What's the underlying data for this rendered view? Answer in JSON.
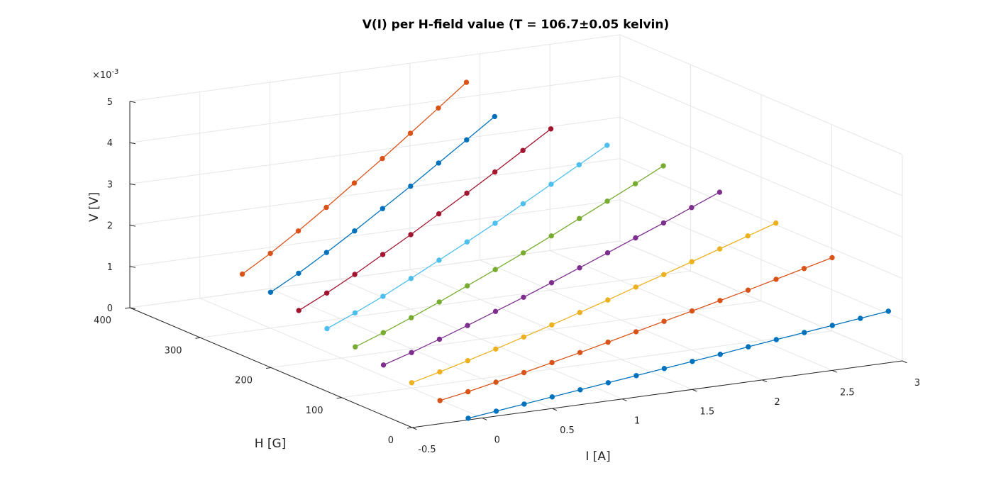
{
  "chart_data": {
    "type": "line",
    "projection": "3d",
    "title": "V(I) per H-field value (T = 106.7±0.05 kelvin)",
    "xlabel": "I [A]",
    "ylabel": "H [G]",
    "zlabel": "V [V]",
    "z_exponent_label": "×10",
    "z_exponent_value": "-3",
    "xlim": [
      -0.5,
      3
    ],
    "ylim": [
      0,
      400
    ],
    "zlim": [
      0,
      0.005
    ],
    "xticks": [
      "-0.5",
      "0",
      "0.5",
      "1",
      "1.5",
      "2",
      "2.5",
      "3"
    ],
    "yticks": [
      "0",
      "100",
      "200",
      "300",
      "400"
    ],
    "zticks": [
      "0",
      "1",
      "2",
      "3",
      "4",
      "5"
    ],
    "grid": true,
    "x": [
      -0.1,
      0.1,
      0.3,
      0.5,
      0.7,
      0.9,
      1.1,
      1.3,
      1.5,
      1.7,
      1.9,
      2.1,
      2.3,
      2.5,
      2.7,
      2.9
    ],
    "series": [
      {
        "H": 0,
        "color": "#0072BD",
        "V": [
          4e-05,
          0.00012,
          0.0002,
          0.00028,
          0.00036,
          0.00044,
          0.00052,
          0.0006,
          0.00068,
          0.00076,
          0.00085,
          0.00093,
          0.00101,
          0.00109,
          0.00117,
          0.00125
        ]
      },
      {
        "H": 40,
        "color": "#D95319",
        "V": [
          0.00018,
          0.0003,
          0.00044,
          0.00058,
          0.00073,
          0.00088,
          0.00104,
          0.0012,
          0.00136,
          0.00152,
          0.00168,
          0.00184,
          0.00201,
          0.00218,
          0.00235
        ]
      },
      {
        "H": 80,
        "color": "#EDB120",
        "V": [
          0.00032,
          0.00049,
          0.00067,
          0.00086,
          0.00106,
          0.00126,
          0.00147,
          0.00168,
          0.0019,
          0.00211,
          0.00233,
          0.00255,
          0.00277,
          0.00299
        ]
      },
      {
        "H": 120,
        "color": "#7E2F8E",
        "V": [
          0.00046,
          0.00067,
          0.0009,
          0.00114,
          0.00139,
          0.00164,
          0.0019,
          0.00217,
          0.00244,
          0.00271,
          0.00298,
          0.00326,
          0.00354
        ]
      },
      {
        "H": 160,
        "color": "#77AC30",
        "V": [
          0.00061,
          0.00086,
          0.00113,
          0.00142,
          0.00172,
          0.00202,
          0.00233,
          0.00265,
          0.00298,
          0.00331,
          0.00364,
          0.00398
        ]
      },
      {
        "H": 200,
        "color": "#4DBEEE",
        "V": [
          0.00076,
          0.00105,
          0.00136,
          0.0017,
          0.00205,
          0.0024,
          0.00276,
          0.00314,
          0.00352,
          0.0039,
          0.00428
        ]
      },
      {
        "H": 240,
        "color": "#A2142F",
        "V": [
          0.00091,
          0.00124,
          0.0016,
          0.00199,
          0.00238,
          0.00279,
          0.0032,
          0.00362,
          0.00405,
          0.00448
        ]
      },
      {
        "H": 280,
        "color": "#0072BD",
        "V": [
          0.00106,
          0.00143,
          0.00184,
          0.00227,
          0.00272,
          0.00317,
          0.00364,
          0.00411,
          0.00458
        ]
      },
      {
        "H": 320,
        "color": "#D95319",
        "V": [
          0.00121,
          0.00162,
          0.00207,
          0.00255,
          0.00305,
          0.00355,
          0.00407,
          0.00459,
          0.00512
        ]
      }
    ]
  }
}
